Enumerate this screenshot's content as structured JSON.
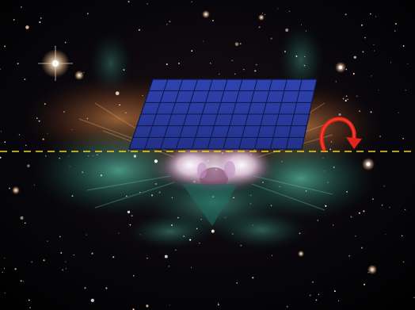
{
  "image": {
    "subject": "nebula-starfield",
    "colors": {
      "background_top": "#07060a",
      "background_bottom": "#000000",
      "nebula_core": "#f2e2ee",
      "nebula_teal": "#3a9a88",
      "nebula_orange": "#b8703a",
      "star": "#fff2d8",
      "plane_fill": "#2a3a9c",
      "plane_grid": "#0b1640",
      "axis_line": "#f2d21c",
      "arrow": "#e2231a"
    },
    "grid": {
      "columns": 11,
      "rows": 6
    },
    "icons": [
      "rotation-arrow-icon"
    ]
  }
}
